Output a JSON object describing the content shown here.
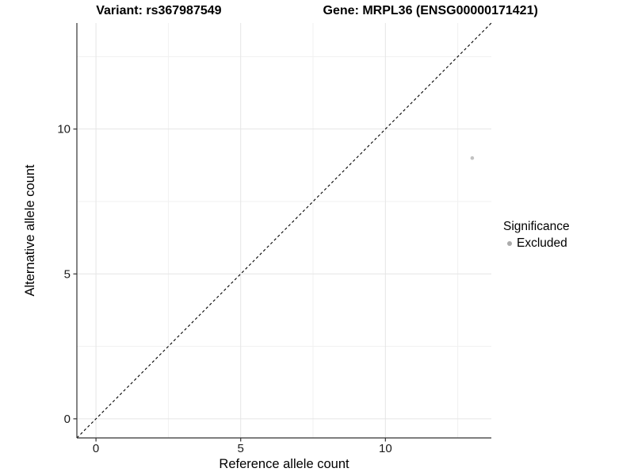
{
  "title": {
    "left": "Variant: rs367987549",
    "right": "Gene: MRPL36 (ENSG00000171421)"
  },
  "chart_data": {
    "type": "scatter",
    "title_left": "Variant: rs367987549",
    "title_right": "Gene: MRPL36 (ENSG00000171421)",
    "xlabel": "Reference allele count",
    "ylabel": "Alternative allele count",
    "xlim": [
      -0.66,
      13.66
    ],
    "ylim": [
      -0.66,
      13.66
    ],
    "x_ticks": [
      0,
      5,
      10
    ],
    "y_ticks": [
      0,
      5,
      10
    ],
    "x_minor_ticks": [
      2.5,
      7.5,
      12.5
    ],
    "y_minor_ticks": [
      2.5,
      7.5,
      12.5
    ],
    "grid": "major+minor",
    "reference_line": {
      "type": "identity",
      "slope": 1,
      "intercept": 0,
      "style": "dashed",
      "color": "#000000"
    },
    "series": [
      {
        "name": "Excluded",
        "color": "#c2c2c2",
        "points": [
          {
            "x": 13,
            "y": 9
          }
        ]
      }
    ],
    "legend": {
      "title": "Significance",
      "position": "right",
      "entries": [
        {
          "label": "Excluded",
          "color": "#ababab",
          "marker": "circle"
        }
      ]
    }
  },
  "colors": {
    "background": "#ffffff",
    "axis_line": "#333333",
    "tick_mark": "#333333",
    "tick_label": "#1a1a1a",
    "grid_major": "#e5e5e5",
    "grid_minor": "#f1f1f1",
    "text": "#000000"
  }
}
